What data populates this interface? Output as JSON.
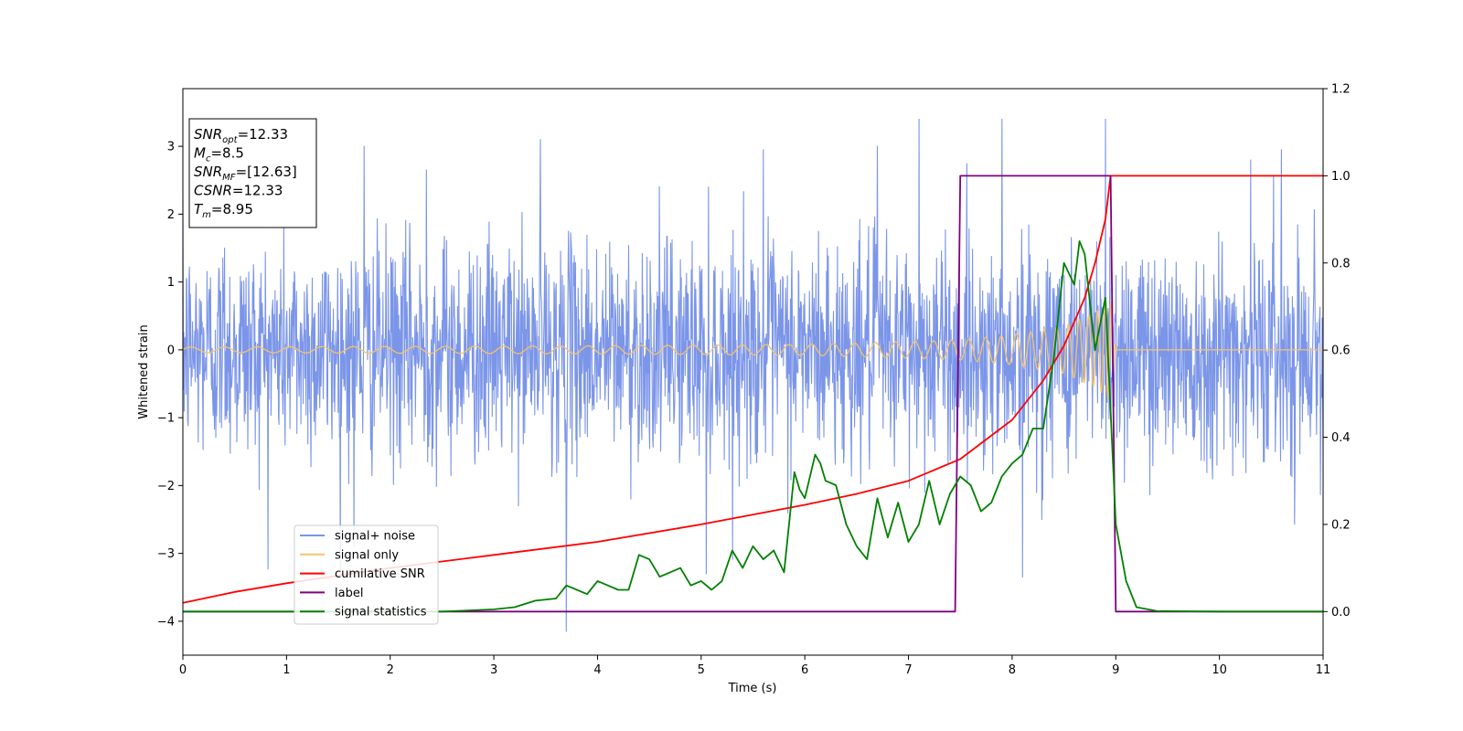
{
  "chart_data": {
    "type": "line",
    "xlabel": "Time (s)",
    "ylabel": "Whitened strain",
    "xlim": [
      0,
      11
    ],
    "ylim_left": [
      -4.5,
      3.85
    ],
    "ylim_right": [
      -0.1,
      1.2
    ],
    "x_ticks": [
      "0",
      "1",
      "2",
      "3",
      "4",
      "5",
      "6",
      "7",
      "8",
      "9",
      "10",
      "11"
    ],
    "y_left_ticks": [
      "−4",
      "−3",
      "−2",
      "−1",
      "0",
      "1",
      "2",
      "3"
    ],
    "y_left_tick_values": [
      -4,
      -3,
      -2,
      -1,
      0,
      1,
      2,
      3
    ],
    "y_right_ticks": [
      "0.0",
      "0.2",
      "0.4",
      "0.6",
      "0.8",
      "1.0",
      "1.2"
    ],
    "y_right_tick_values": [
      0.0,
      0.2,
      0.4,
      0.6,
      0.8,
      1.0,
      1.2
    ],
    "grid": false,
    "legend_position": "lower-left",
    "annotation": {
      "lines": [
        {
          "sym": "SNR",
          "sub": "opt",
          "value": "=12.33"
        },
        {
          "sym": "M",
          "sub": "c",
          "value": "=8.5"
        },
        {
          "sym": "SNR",
          "sub": "MF",
          "value": "=[12.63]"
        },
        {
          "sym": "CSNR",
          "sub": "",
          "value": "=12.33"
        },
        {
          "sym": "T",
          "sub": "m",
          "value": "=8.95"
        }
      ]
    },
    "series": [
      {
        "name": "signal+ noise",
        "axis": "left",
        "color": "#7b95e8",
        "kind": "noise",
        "sigma": 0.8,
        "x_range": [
          0,
          11
        ],
        "extremes": [
          [
            0.4,
            1.5
          ],
          [
            1.65,
            -2.9
          ],
          [
            1.75,
            3.0
          ],
          [
            2.35,
            2.65
          ],
          [
            3.45,
            3.1
          ],
          [
            3.7,
            -4.15
          ],
          [
            5.05,
            -3.3
          ],
          [
            5.6,
            2.95
          ],
          [
            6.7,
            3.0
          ],
          [
            7.1,
            3.4
          ],
          [
            7.9,
            3.4
          ],
          [
            8.1,
            -3.35
          ],
          [
            8.9,
            3.4
          ],
          [
            10.3,
            2.8
          ],
          [
            10.6,
            2.95
          ]
        ]
      },
      {
        "name": "signal only",
        "axis": "left",
        "color": "#f5c36b",
        "kind": "chirp",
        "envelope_x": [
          0,
          2,
          4,
          5,
          6,
          7,
          7.5,
          8,
          8.5,
          8.8,
          8.95,
          9.0,
          11
        ],
        "envelope_y": [
          0.04,
          0.05,
          0.06,
          0.07,
          0.08,
          0.12,
          0.15,
          0.22,
          0.35,
          0.55,
          0.75,
          0.0,
          0.0
        ]
      },
      {
        "name": "cumilative SNR",
        "axis": "right",
        "color": "#ff0000",
        "x": [
          0,
          0.5,
          1,
          2,
          3,
          4,
          5,
          6,
          6.5,
          7,
          7.5,
          8,
          8.3,
          8.5,
          8.7,
          8.8,
          8.9,
          8.95,
          8.96,
          11
        ],
        "y": [
          0.02,
          0.045,
          0.065,
          0.1,
          0.13,
          0.16,
          0.2,
          0.245,
          0.27,
          0.3,
          0.35,
          0.44,
          0.53,
          0.61,
          0.72,
          0.8,
          0.9,
          1.0,
          1.0,
          1.0
        ]
      },
      {
        "name": "label",
        "axis": "right",
        "color": "#800080",
        "x": [
          0,
          7.45,
          7.5,
          8.95,
          9.0,
          11
        ],
        "y": [
          0.0,
          0.0,
          1.0,
          1.0,
          0.0,
          0.0
        ]
      },
      {
        "name": "signal statistics",
        "axis": "right",
        "color": "#008000",
        "x": [
          0,
          1,
          2,
          2.5,
          3,
          3.2,
          3.4,
          3.6,
          3.7,
          3.9,
          4.0,
          4.1,
          4.2,
          4.3,
          4.4,
          4.5,
          4.6,
          4.7,
          4.8,
          4.9,
          5.0,
          5.1,
          5.2,
          5.3,
          5.4,
          5.5,
          5.6,
          5.7,
          5.8,
          5.9,
          5.95,
          6.0,
          6.1,
          6.15,
          6.2,
          6.3,
          6.4,
          6.5,
          6.6,
          6.7,
          6.8,
          6.9,
          7.0,
          7.1,
          7.2,
          7.3,
          7.4,
          7.5,
          7.6,
          7.7,
          7.8,
          7.9,
          8.0,
          8.1,
          8.2,
          8.3,
          8.4,
          8.5,
          8.6,
          8.65,
          8.7,
          8.8,
          8.9,
          9.0,
          9.1,
          9.2,
          9.4,
          10,
          11
        ],
        "y": [
          0.0,
          0.0,
          0.0,
          0.0,
          0.005,
          0.01,
          0.025,
          0.03,
          0.06,
          0.04,
          0.07,
          0.06,
          0.05,
          0.05,
          0.13,
          0.12,
          0.08,
          0.09,
          0.1,
          0.06,
          0.07,
          0.05,
          0.07,
          0.14,
          0.1,
          0.15,
          0.12,
          0.14,
          0.09,
          0.32,
          0.28,
          0.26,
          0.36,
          0.34,
          0.3,
          0.29,
          0.2,
          0.15,
          0.12,
          0.26,
          0.17,
          0.25,
          0.16,
          0.2,
          0.3,
          0.2,
          0.27,
          0.31,
          0.29,
          0.23,
          0.25,
          0.31,
          0.34,
          0.36,
          0.42,
          0.42,
          0.58,
          0.8,
          0.75,
          0.85,
          0.82,
          0.6,
          0.72,
          0.2,
          0.07,
          0.01,
          0.001,
          0.0,
          0.0
        ]
      }
    ]
  }
}
